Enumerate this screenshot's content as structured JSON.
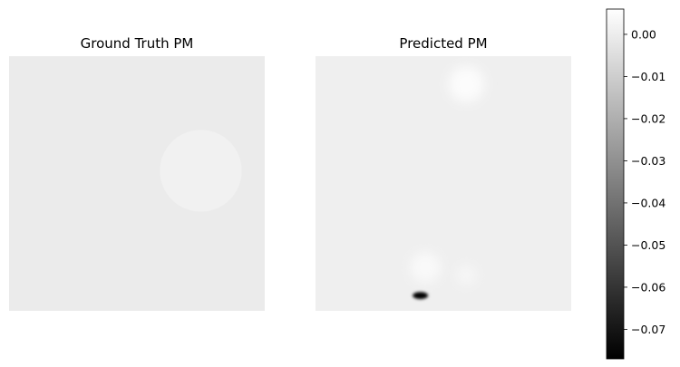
{
  "chart_data": {
    "type": "heatmap",
    "colormap": "gray",
    "colorbar": {
      "min": -0.077,
      "max": 0.006,
      "ticks": [
        {
          "value": 0.0,
          "label": "0.00"
        },
        {
          "value": -0.01,
          "label": "−0.01"
        },
        {
          "value": -0.02,
          "label": "−0.02"
        },
        {
          "value": -0.03,
          "label": "−0.03"
        },
        {
          "value": -0.04,
          "label": "−0.04"
        },
        {
          "value": -0.05,
          "label": "−0.05"
        },
        {
          "value": -0.06,
          "label": "−0.06"
        },
        {
          "value": -0.07,
          "label": "−0.07"
        }
      ]
    },
    "panels": [
      {
        "title": "Ground Truth PM",
        "background_value": -0.0005,
        "features": [
          {
            "shape": "disk",
            "cx": 0.75,
            "cy": 0.45,
            "r": 0.16,
            "value": 0.0015
          }
        ]
      },
      {
        "title": "Predicted PM",
        "background_value": 0.0009,
        "features": [
          {
            "shape": "blob",
            "cx": 0.59,
            "cy": 0.11,
            "r": 0.07,
            "value": 0.005
          },
          {
            "shape": "blob",
            "cx": 0.43,
            "cy": 0.83,
            "r": 0.06,
            "value": 0.004
          },
          {
            "shape": "blob",
            "cx": 0.59,
            "cy": 0.86,
            "r": 0.04,
            "value": 0.003
          },
          {
            "shape": "ellipse",
            "cx": 0.41,
            "cy": 0.94,
            "rx": 0.03,
            "ry": 0.014,
            "value": -0.077
          }
        ]
      }
    ]
  }
}
